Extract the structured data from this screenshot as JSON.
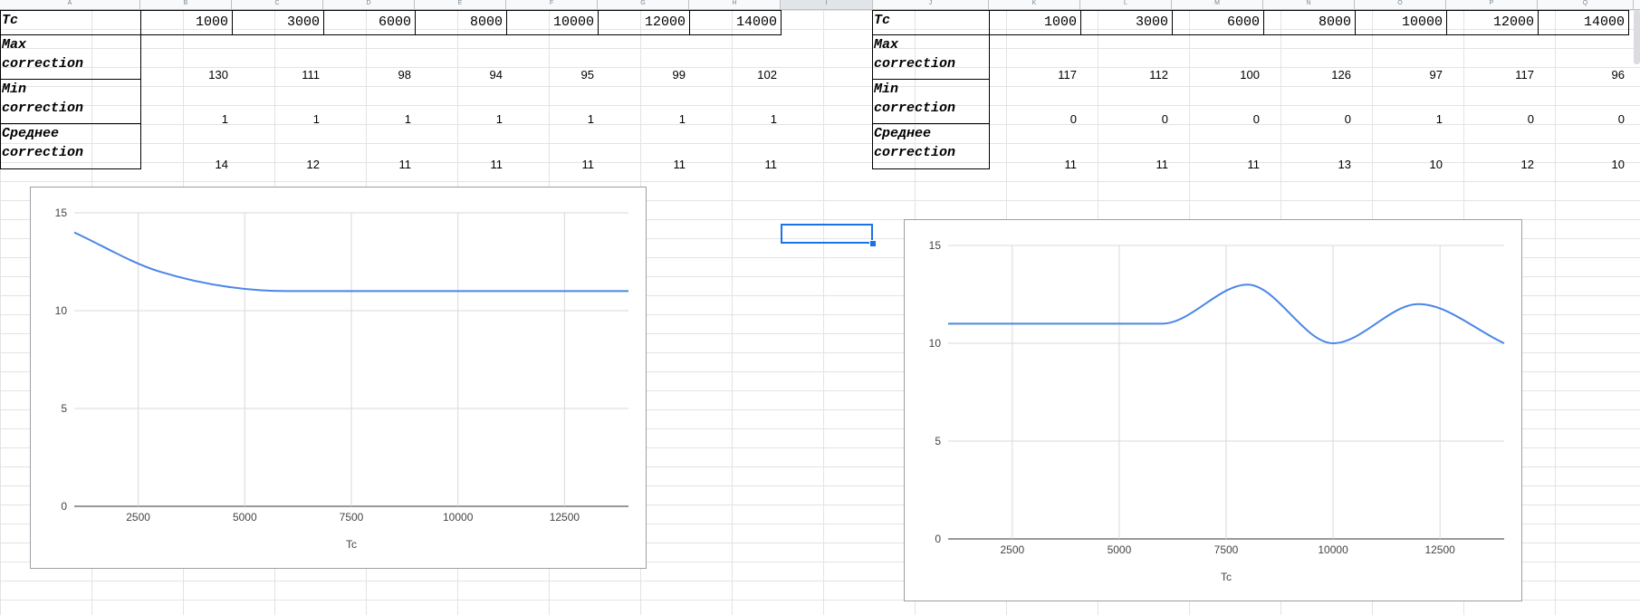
{
  "columns": [
    "A",
    "B",
    "C",
    "D",
    "E",
    "F",
    "G",
    "H",
    "I",
    "J",
    "K",
    "L",
    "M",
    "N",
    "O",
    "P",
    "Q"
  ],
  "table_left": {
    "header_label": "Tc",
    "tc_values": [
      "1000",
      "3000",
      "6000",
      "8000",
      "10000",
      "12000",
      "14000"
    ],
    "rows": [
      {
        "label": "Max\ncorrection",
        "values": [
          "130",
          "111",
          "98",
          "94",
          "95",
          "99",
          "102"
        ]
      },
      {
        "label": "Min\ncorrection",
        "values": [
          "1",
          "1",
          "1",
          "1",
          "1",
          "1",
          "1"
        ]
      },
      {
        "label": "Среднее\ncorrection",
        "values": [
          "14",
          "12",
          "11",
          "11",
          "11",
          "11",
          "11"
        ]
      }
    ]
  },
  "table_right": {
    "header_label": "Tc",
    "tc_values": [
      "1000",
      "3000",
      "6000",
      "8000",
      "10000",
      "12000",
      "14000"
    ],
    "rows": [
      {
        "label": "Max\ncorrection",
        "values": [
          "117",
          "112",
          "100",
          "126",
          "97",
          "117",
          "96"
        ]
      },
      {
        "label": "Min\ncorrection",
        "values": [
          "0",
          "0",
          "0",
          "0",
          "1",
          "0",
          "0"
        ]
      },
      {
        "label": "Среднее\ncorrection",
        "values": [
          "11",
          "11",
          "11",
          "13",
          "10",
          "12",
          "10"
        ]
      }
    ]
  },
  "chart_data": [
    {
      "type": "line",
      "xlabel": "Tc",
      "ylabel": "",
      "x": [
        1000,
        3000,
        6000,
        8000,
        10000,
        12000,
        14000
      ],
      "series": [
        {
          "values": [
            14,
            12,
            11,
            11,
            11,
            11,
            11
          ]
        }
      ],
      "xlim": [
        1000,
        14000
      ],
      "ylim": [
        0,
        15
      ],
      "xticks": [
        2500,
        5000,
        7500,
        10000,
        12500
      ],
      "yticks": [
        0,
        5,
        10,
        15
      ],
      "grid": true,
      "color": "#4a86e8"
    },
    {
      "type": "line",
      "xlabel": "Tc",
      "ylabel": "",
      "x": [
        1000,
        3000,
        6000,
        8000,
        10000,
        12000,
        14000
      ],
      "series": [
        {
          "values": [
            11,
            11,
            11,
            13,
            10,
            12,
            10
          ]
        }
      ],
      "xlim": [
        1000,
        14000
      ],
      "ylim": [
        0,
        15
      ],
      "xticks": [
        2500,
        5000,
        7500,
        10000,
        12500
      ],
      "yticks": [
        0,
        5,
        10,
        15
      ],
      "grid": true,
      "color": "#4a86e8"
    }
  ]
}
